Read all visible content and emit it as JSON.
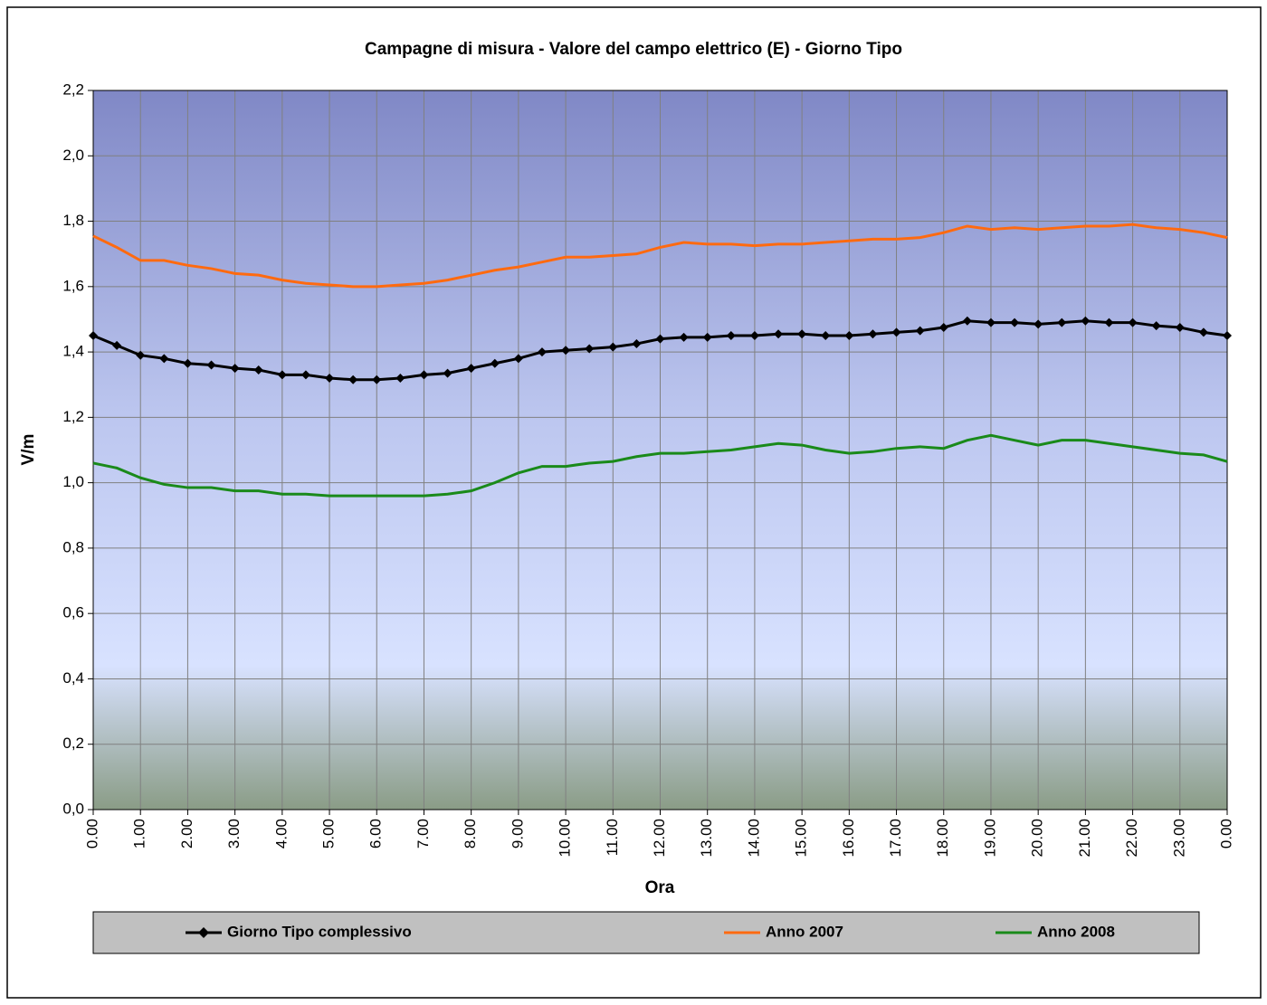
{
  "chart_data": {
    "type": "line",
    "title": "Campagne di misura - Valore del campo elettrico (E) - Giorno Tipo",
    "xlabel": "Ora",
    "ylabel": "V/m",
    "x": [
      0,
      0.5,
      1,
      1.5,
      2,
      2.5,
      3,
      3.5,
      4,
      4.5,
      5,
      5.5,
      6,
      6.5,
      7,
      7.5,
      8,
      8.5,
      9,
      9.5,
      10,
      10.5,
      11,
      11.5,
      12,
      12.5,
      13,
      13.5,
      14,
      14.5,
      15,
      15.5,
      16,
      16.5,
      17,
      17.5,
      18,
      18.5,
      19,
      19.5,
      20,
      20.5,
      21,
      21.5,
      22,
      22.5,
      23,
      23.5,
      24
    ],
    "series": [
      {
        "name": "Giorno Tipo complessivo",
        "color": "#000000",
        "marker": "diamond",
        "values": [
          1.45,
          1.42,
          1.39,
          1.38,
          1.365,
          1.36,
          1.35,
          1.345,
          1.33,
          1.33,
          1.32,
          1.315,
          1.315,
          1.32,
          1.33,
          1.335,
          1.35,
          1.365,
          1.38,
          1.4,
          1.405,
          1.41,
          1.415,
          1.425,
          1.44,
          1.445,
          1.445,
          1.45,
          1.45,
          1.455,
          1.455,
          1.45,
          1.45,
          1.455,
          1.46,
          1.465,
          1.475,
          1.495,
          1.49,
          1.49,
          1.485,
          1.49,
          1.495,
          1.49,
          1.49,
          1.48,
          1.475,
          1.46,
          1.45
        ]
      },
      {
        "name": "Anno 2007",
        "color": "#ff6a10",
        "values": [
          1.755,
          1.72,
          1.68,
          1.68,
          1.665,
          1.655,
          1.64,
          1.635,
          1.62,
          1.61,
          1.605,
          1.6,
          1.6,
          1.605,
          1.61,
          1.62,
          1.635,
          1.65,
          1.66,
          1.675,
          1.69,
          1.69,
          1.695,
          1.7,
          1.72,
          1.735,
          1.73,
          1.73,
          1.725,
          1.73,
          1.73,
          1.735,
          1.74,
          1.745,
          1.745,
          1.75,
          1.765,
          1.785,
          1.775,
          1.78,
          1.775,
          1.78,
          1.785,
          1.785,
          1.79,
          1.78,
          1.775,
          1.765,
          1.75
        ]
      },
      {
        "name": "Anno 2008",
        "color": "#1a8a1a",
        "values": [
          1.06,
          1.045,
          1.015,
          0.995,
          0.985,
          0.985,
          0.975,
          0.975,
          0.965,
          0.965,
          0.96,
          0.96,
          0.96,
          0.96,
          0.96,
          0.965,
          0.975,
          1.0,
          1.03,
          1.05,
          1.05,
          1.06,
          1.065,
          1.08,
          1.09,
          1.09,
          1.095,
          1.1,
          1.11,
          1.12,
          1.115,
          1.1,
          1.09,
          1.095,
          1.105,
          1.11,
          1.105,
          1.13,
          1.145,
          1.13,
          1.115,
          1.13,
          1.13,
          1.12,
          1.11,
          1.1,
          1.09,
          1.085,
          1.065
        ]
      }
    ],
    "xlim": [
      0,
      24
    ],
    "xticks": [
      {
        "value": 0,
        "label": "0.00"
      },
      {
        "value": 1,
        "label": "1.00"
      },
      {
        "value": 2,
        "label": "2.00"
      },
      {
        "value": 3,
        "label": "3.00"
      },
      {
        "value": 4,
        "label": "4.00"
      },
      {
        "value": 5,
        "label": "5.00"
      },
      {
        "value": 6,
        "label": "6.00"
      },
      {
        "value": 7,
        "label": "7.00"
      },
      {
        "value": 8,
        "label": "8.00"
      },
      {
        "value": 9,
        "label": "9.00"
      },
      {
        "value": 10,
        "label": "10.00"
      },
      {
        "value": 11,
        "label": "11.00"
      },
      {
        "value": 12,
        "label": "12.00"
      },
      {
        "value": 13,
        "label": "13.00"
      },
      {
        "value": 14,
        "label": "14.00"
      },
      {
        "value": 15,
        "label": "15.00"
      },
      {
        "value": 16,
        "label": "16.00"
      },
      {
        "value": 17,
        "label": "17.00"
      },
      {
        "value": 18,
        "label": "18.00"
      },
      {
        "value": 19,
        "label": "19.00"
      },
      {
        "value": 20,
        "label": "20.00"
      },
      {
        "value": 21,
        "label": "21.00"
      },
      {
        "value": 22,
        "label": "22.00"
      },
      {
        "value": 23,
        "label": "23.00"
      },
      {
        "value": 24,
        "label": "0.00"
      }
    ],
    "ylim": [
      0,
      2.2
    ],
    "yticks": [
      {
        "value": 0,
        "label": "0,0"
      },
      {
        "value": 0.2,
        "label": "0,2"
      },
      {
        "value": 0.4,
        "label": "0,4"
      },
      {
        "value": 0.6,
        "label": "0,6"
      },
      {
        "value": 0.8,
        "label": "0,8"
      },
      {
        "value": 1.0,
        "label": "1,0"
      },
      {
        "value": 1.2,
        "label": "1,2"
      },
      {
        "value": 1.4,
        "label": "1,4"
      },
      {
        "value": 1.6,
        "label": "1,6"
      },
      {
        "value": 1.8,
        "label": "1,8"
      },
      {
        "value": 2.0,
        "label": "2,0"
      },
      {
        "value": 2.2,
        "label": "2,2"
      }
    ],
    "grid": true,
    "legend": "bottom"
  }
}
